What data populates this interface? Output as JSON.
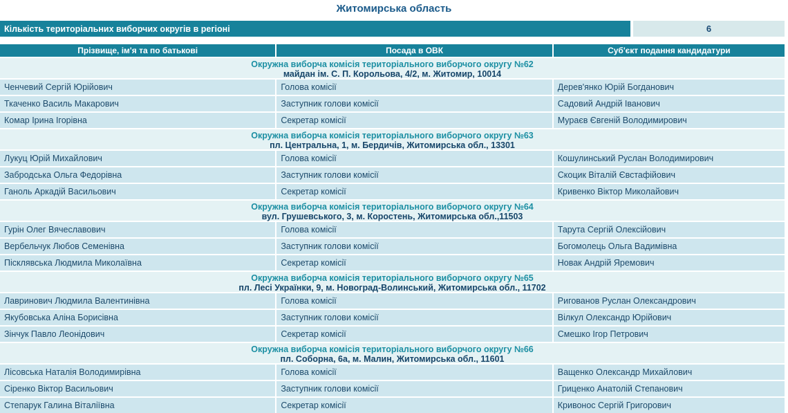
{
  "page": {
    "title": "Житомирська область"
  },
  "summary": {
    "label": "Кількість територіальних виборчих округів в регіоні",
    "value": "6"
  },
  "colors": {
    "teal_bar": "#17829b",
    "section_header_bg": "#e4f2f4",
    "row_bg": "#cee6ee",
    "section_title_text": "#1c8fa3",
    "body_text": "#1c4a6b"
  },
  "table": {
    "columns": [
      "Прізвище, ім'я та по батькові",
      "Посада в ОВК",
      "Суб'єкт подання кандидатури"
    ],
    "sections": [
      {
        "title": "Окружна виборча комісія територіального виборчого округу №62",
        "address": "майдан ім. С. П. Корольова, 4/2, м. Житомир, 10014",
        "rows": [
          [
            "Ченчевий Сергій Юрійович",
            "Голова комісії",
            "Дерев'янко Юрій Богданович"
          ],
          [
            "Ткаченко Василь Макарович",
            "Заступник голови комісії",
            "Садовий Андрій Іванович"
          ],
          [
            "Комар Ірина Ігорівна",
            "Секретар комісії",
            "Мураєв Євгеній Володимирович"
          ]
        ]
      },
      {
        "title": "Окружна виборча комісія територіального виборчого округу №63",
        "address": "пл. Центральна, 1, м. Бердичів, Житомирська обл., 13301",
        "rows": [
          [
            "Лукуц Юрій Михайлович",
            "Голова комісії",
            "Кошулинський Руслан Володимирович"
          ],
          [
            "Забродська Ольга Федорівна",
            "Заступник голови комісії",
            "Скоцик Віталій Євстафійович"
          ],
          [
            "Ганоль Аркадій Васильович",
            "Секретар комісії",
            "Кривенко Віктор Миколайович"
          ]
        ]
      },
      {
        "title": "Окружна виборча комісія територіального виборчого округу №64",
        "address": "вул. Грушевського, 3, м. Коростень, Житомирська обл.,11503",
        "rows": [
          [
            "Гурін Олег Вячеславович",
            "Голова комісії",
            "Тарута Сергій Олексійович"
          ],
          [
            "Вербельчук Любов Семенівна",
            "Заступник голови комісії",
            "Богомолець Ольга Вадимівна"
          ],
          [
            "Пісклявська Людмила Миколаївна",
            "Секретар комісії",
            "Новак Андрій Яремович"
          ]
        ]
      },
      {
        "title": "Окружна виборча комісія територіального виборчого округу №65",
        "address": "пл. Лесі Українки, 9, м. Новоград-Волинський, Житомирська обл., 11702",
        "rows": [
          [
            "Лавринович Людмила Валентинівна",
            "Голова комісії",
            "Ригованов Руслан Олександрович"
          ],
          [
            "Якубовська Аліна Борисівна",
            "Заступник голови комісії",
            "Вілкул Олександр Юрійович"
          ],
          [
            "Зінчук Павло Леонідович",
            "Секретар комісії",
            "Смешко Ігор Петрович"
          ]
        ]
      },
      {
        "title": "Окружна виборча комісія територіального виборчого округу №66",
        "address": "пл. Соборна, 6а, м. Малин, Житомирська обл., 11601",
        "rows": [
          [
            "Лісовська Наталія Володимирівна",
            "Голова комісії",
            "Ващенко Олександр Михайлович"
          ],
          [
            "Сіренко Віктор Васильович",
            "Заступник голови комісії",
            "Гриценко Анатолій Степанович"
          ],
          [
            "Степарук Галина Віталіївна",
            "Секретар комісії",
            "Кривонос Сергій Григорович"
          ]
        ]
      }
    ]
  }
}
